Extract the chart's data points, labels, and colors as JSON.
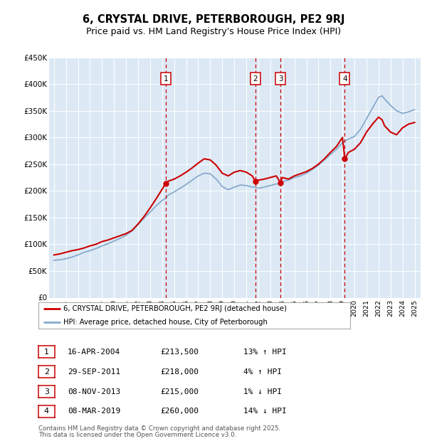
{
  "title": "6, CRYSTAL DRIVE, PETERBOROUGH, PE2 9RJ",
  "subtitle": "Price paid vs. HM Land Registry's House Price Index (HPI)",
  "title_fontsize": 10.5,
  "subtitle_fontsize": 9,
  "ylim": [
    0,
    450000
  ],
  "yticks": [
    0,
    50000,
    100000,
    150000,
    200000,
    250000,
    300000,
    350000,
    400000,
    450000
  ],
  "ytick_labels": [
    "£0",
    "£50K",
    "£100K",
    "£150K",
    "£200K",
    "£250K",
    "£300K",
    "£350K",
    "£400K",
    "£450K"
  ],
  "xlim_start": 1994.6,
  "xlim_end": 2025.5,
  "plot_bg_color": "#dce9f5",
  "grid_color": "#ffffff",
  "red_line_color": "#cc0000",
  "blue_line_color": "#88aacc",
  "sale_line_color": "#cc0000",
  "marker_box_color": "#cc0000",
  "sales": [
    {
      "num": 1,
      "date": "16-APR-2004",
      "year": 2004.29,
      "price": 213500,
      "pct": "13%",
      "dir": "↑"
    },
    {
      "num": 2,
      "date": "29-SEP-2011",
      "year": 2011.75,
      "price": 218000,
      "pct": "4%",
      "dir": "↑"
    },
    {
      "num": 3,
      "date": "08-NOV-2013",
      "year": 2013.85,
      "price": 215000,
      "pct": "1%",
      "dir": "↓"
    },
    {
      "num": 4,
      "date": "08-MAR-2019",
      "year": 2019.19,
      "price": 260000,
      "pct": "14%",
      "dir": "↓"
    }
  ],
  "legend_label_red": "6, CRYSTAL DRIVE, PETERBOROUGH, PE2 9RJ (detached house)",
  "legend_label_blue": "HPI: Average price, detached house, City of Peterborough",
  "footer_line1": "Contains HM Land Registry data © Crown copyright and database right 2025.",
  "footer_line2": "This data is licensed under the Open Government Licence v3.0.",
  "hpi_years": [
    1995.0,
    1995.5,
    1996.0,
    1996.5,
    1997.0,
    1997.5,
    1998.0,
    1998.5,
    1999.0,
    1999.5,
    2000.0,
    2000.5,
    2001.0,
    2001.5,
    2002.0,
    2002.5,
    2003.0,
    2003.5,
    2004.0,
    2004.29,
    2004.5,
    2005.0,
    2005.5,
    2006.0,
    2006.5,
    2007.0,
    2007.5,
    2008.0,
    2008.5,
    2009.0,
    2009.5,
    2010.0,
    2010.5,
    2011.0,
    2011.5,
    2011.75,
    2012.0,
    2012.5,
    2013.0,
    2013.5,
    2013.85,
    2014.0,
    2014.5,
    2015.0,
    2015.5,
    2016.0,
    2016.5,
    2017.0,
    2017.5,
    2018.0,
    2018.5,
    2019.0,
    2019.19,
    2019.5,
    2020.0,
    2020.5,
    2021.0,
    2021.5,
    2022.0,
    2022.3,
    2022.5,
    2023.0,
    2023.5,
    2024.0,
    2024.5,
    2025.0
  ],
  "hpi_blue": [
    70000,
    71000,
    73000,
    76000,
    80000,
    85000,
    88000,
    92000,
    97000,
    101000,
    106000,
    111000,
    117000,
    125000,
    137000,
    149000,
    160000,
    172000,
    182000,
    186000,
    192000,
    198000,
    205000,
    212000,
    220000,
    228000,
    233000,
    232000,
    222000,
    208000,
    202000,
    207000,
    211000,
    210000,
    207000,
    207000,
    205000,
    207000,
    210000,
    213000,
    213000,
    217000,
    220000,
    225000,
    228000,
    233000,
    240000,
    248000,
    258000,
    268000,
    278000,
    290000,
    293000,
    297000,
    302000,
    315000,
    335000,
    355000,
    375000,
    378000,
    372000,
    360000,
    350000,
    345000,
    348000,
    352000
  ],
  "hpi_red": [
    80000,
    82000,
    85000,
    88000,
    90000,
    93000,
    97000,
    100000,
    105000,
    108000,
    112000,
    116000,
    120000,
    126000,
    138000,
    152000,
    168000,
    185000,
    203000,
    213500,
    218000,
    222000,
    228000,
    235000,
    243000,
    252000,
    260000,
    258000,
    248000,
    233000,
    228000,
    235000,
    238000,
    235000,
    228000,
    218000,
    220000,
    222000,
    225000,
    228000,
    215000,
    225000,
    222000,
    228000,
    232000,
    236000,
    242000,
    250000,
    260000,
    272000,
    283000,
    300000,
    260000,
    272000,
    278000,
    290000,
    310000,
    325000,
    338000,
    333000,
    322000,
    310000,
    305000,
    318000,
    325000,
    328000
  ]
}
